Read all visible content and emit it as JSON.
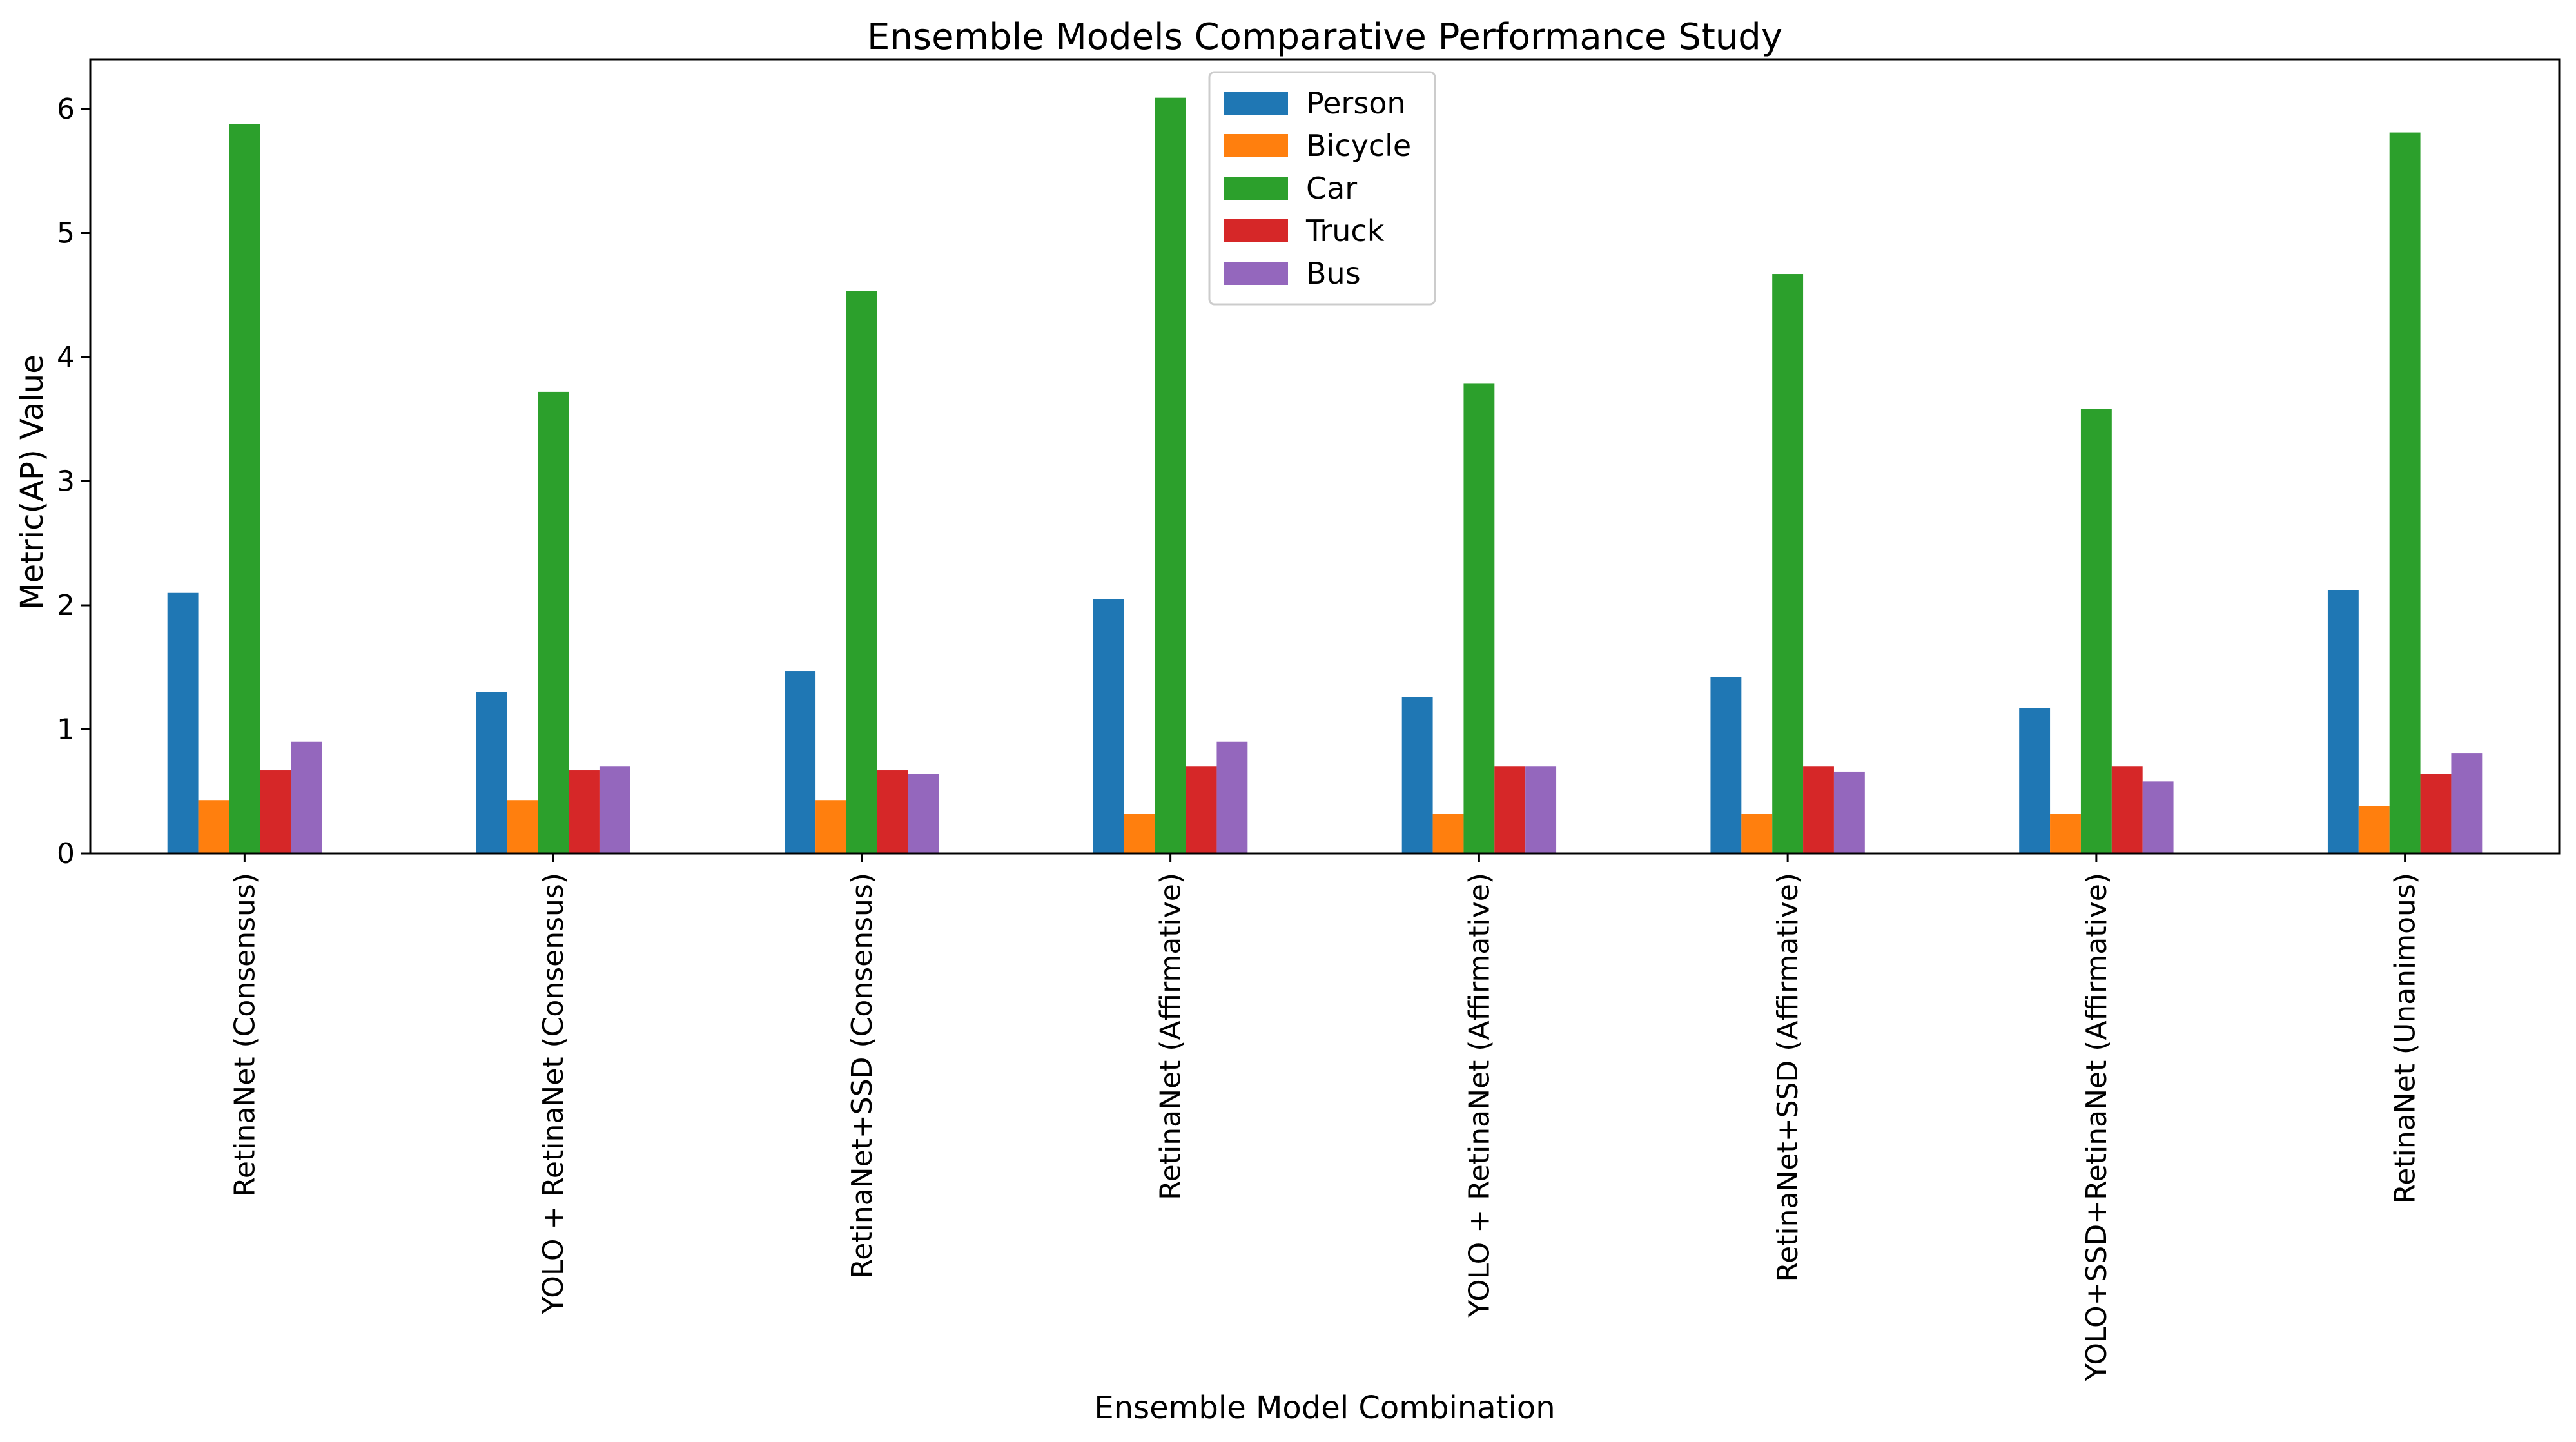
{
  "chart_data": {
    "type": "bar",
    "title": "Ensemble Models Comparative Performance Study",
    "xlabel": "Ensemble Model Combination",
    "ylabel": "Metric(AP) Value",
    "ylim": [
      0,
      6.4
    ],
    "yticks": [
      "0",
      "1",
      "2",
      "3",
      "4",
      "5",
      "6"
    ],
    "grid": false,
    "legend_position": "top-center",
    "categories": [
      "RetinaNet (Consensus)",
      "YOLO + RetinaNet (Consensus)",
      "RetinaNet+SSD (Consensus)",
      "RetinaNet (Affirmative)",
      "YOLO + RetinaNet (Affirmative)",
      "RetinaNet+SSD (Affirmative)",
      "YOLO+SSD+RetinaNet (Affirmative)",
      "RetinaNet (Unanimous)"
    ],
    "series": [
      {
        "name": "Person",
        "color": "#1f77b4",
        "values": [
          2.1,
          1.3,
          1.47,
          2.05,
          1.26,
          1.42,
          1.17,
          2.12
        ]
      },
      {
        "name": "Bicycle",
        "color": "#ff7f0e",
        "values": [
          0.43,
          0.43,
          0.43,
          0.32,
          0.32,
          0.32,
          0.32,
          0.38
        ]
      },
      {
        "name": "Car",
        "color": "#2ca02c",
        "values": [
          5.88,
          3.72,
          4.53,
          6.09,
          3.79,
          4.67,
          3.58,
          5.81
        ]
      },
      {
        "name": "Truck",
        "color": "#d62728",
        "values": [
          0.67,
          0.67,
          0.67,
          0.7,
          0.7,
          0.7,
          0.7,
          0.64
        ]
      },
      {
        "name": "Bus",
        "color": "#9467bd",
        "values": [
          0.9,
          0.7,
          0.64,
          0.9,
          0.7,
          0.66,
          0.58,
          0.81
        ]
      }
    ]
  }
}
